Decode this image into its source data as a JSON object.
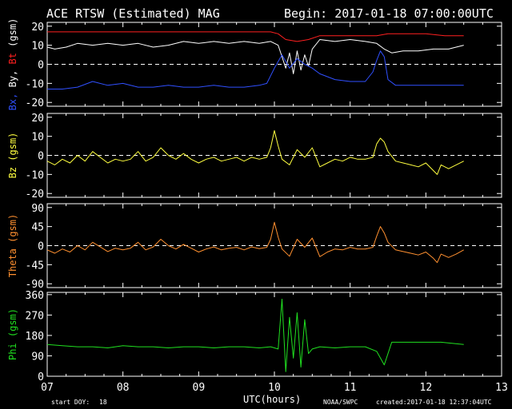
{
  "header": {
    "title": "ACE RTSW (Estimated) MAG",
    "begin": "Begin: 2017-01-18 07:00:00UTC"
  },
  "footer": {
    "start_doy_label": "start DOY:",
    "start_doy": "18",
    "xlabel": "UTC(hours)",
    "source": "NOAA/SWPC",
    "created": "created:2017-01-18 12:37:04UTC"
  },
  "colors": {
    "bt": "#ff2020",
    "by": "#ffffff",
    "bx": "#3050ff",
    "bz": "#ffff40",
    "theta": "#ff9030",
    "phi": "#20e020"
  },
  "chart_data": [
    {
      "type": "line",
      "ylabel_parts": [
        {
          "text": "Bx,",
          "color": "#3050ff"
        },
        {
          "text": " By,",
          "color": "#ffffff"
        },
        {
          "text": " Bt",
          "color": "#ff2020"
        },
        {
          "text": " (gsm)",
          "color": "#ffffff"
        }
      ],
      "ylim": [
        -22,
        22
      ],
      "yticks": [
        20,
        10,
        0,
        -10,
        -20
      ],
      "xlim": [
        7,
        13
      ],
      "zero_line": true,
      "series": [
        {
          "name": "Bt",
          "color": "#ff2020",
          "x": [
            7.0,
            7.25,
            7.5,
            7.75,
            8.0,
            8.25,
            8.5,
            8.75,
            9.0,
            9.25,
            9.5,
            9.75,
            9.95,
            10.05,
            10.15,
            10.3,
            10.45,
            10.6,
            10.8,
            11.0,
            11.2,
            11.35,
            11.5,
            11.75,
            12.0,
            12.25,
            12.5
          ],
          "y": [
            17,
            17,
            17,
            17,
            17,
            17,
            17,
            17,
            17,
            17,
            17,
            17,
            17,
            16,
            13,
            12,
            13,
            15,
            15,
            15,
            15,
            15,
            16,
            16,
            16,
            15,
            15
          ]
        },
        {
          "name": "By",
          "color": "#ffffff",
          "x": [
            7.0,
            7.1,
            7.25,
            7.4,
            7.6,
            7.8,
            8.0,
            8.2,
            8.4,
            8.6,
            8.8,
            9.0,
            9.2,
            9.4,
            9.6,
            9.8,
            9.95,
            10.05,
            10.1,
            10.15,
            10.2,
            10.25,
            10.3,
            10.35,
            10.4,
            10.45,
            10.5,
            10.6,
            10.8,
            11.0,
            11.2,
            11.35,
            11.45,
            11.55,
            11.7,
            11.9,
            12.1,
            12.3,
            12.5
          ],
          "y": [
            9,
            8,
            9,
            11,
            10,
            11,
            10,
            11,
            9,
            10,
            12,
            11,
            12,
            11,
            12,
            11,
            12,
            10,
            4,
            -2,
            6,
            -5,
            7,
            -3,
            5,
            -1,
            8,
            13,
            12,
            13,
            12,
            11,
            8,
            6,
            7,
            7,
            8,
            8,
            10
          ]
        },
        {
          "name": "Bx",
          "color": "#3050ff",
          "x": [
            7.0,
            7.2,
            7.4,
            7.6,
            7.8,
            8.0,
            8.2,
            8.4,
            8.6,
            8.8,
            9.0,
            9.2,
            9.4,
            9.6,
            9.8,
            9.9,
            9.95,
            10.0,
            10.1,
            10.2,
            10.3,
            10.4,
            10.5,
            10.6,
            10.8,
            11.0,
            11.2,
            11.3,
            11.35,
            11.4,
            11.45,
            11.5,
            11.6,
            11.8,
            12.0,
            12.2,
            12.5
          ],
          "y": [
            -13,
            -13,
            -12,
            -9,
            -11,
            -10,
            -12,
            -12,
            -11,
            -12,
            -12,
            -11,
            -12,
            -12,
            -11,
            -10,
            -6,
            -2,
            5,
            -2,
            3,
            0,
            -2,
            -5,
            -8,
            -9,
            -9,
            -4,
            2,
            7,
            4,
            -8,
            -11,
            -11,
            -11,
            -11,
            -11
          ]
        }
      ]
    },
    {
      "type": "line",
      "ylabel_parts": [
        {
          "text": "Bz  (gsm)",
          "color": "#ffff40"
        }
      ],
      "ylim": [
        -22,
        22
      ],
      "yticks": [
        20,
        10,
        0,
        -10,
        -20
      ],
      "xlim": [
        7,
        13
      ],
      "zero_line": true,
      "series": [
        {
          "name": "Bz",
          "color": "#ffff40",
          "x": [
            7.0,
            7.1,
            7.2,
            7.3,
            7.4,
            7.5,
            7.6,
            7.7,
            7.8,
            7.9,
            8.0,
            8.1,
            8.2,
            8.3,
            8.4,
            8.5,
            8.6,
            8.7,
            8.8,
            8.9,
            9.0,
            9.1,
            9.2,
            9.3,
            9.4,
            9.5,
            9.6,
            9.7,
            9.8,
            9.9,
            9.95,
            10.0,
            10.05,
            10.1,
            10.2,
            10.3,
            10.4,
            10.5,
            10.6,
            10.7,
            10.8,
            10.9,
            11.0,
            11.1,
            11.2,
            11.3,
            11.35,
            11.4,
            11.45,
            11.5,
            11.6,
            11.7,
            11.8,
            11.9,
            12.0,
            12.1,
            12.15,
            12.2,
            12.3,
            12.4,
            12.5
          ],
          "y": [
            -3,
            -5,
            -2,
            -4,
            0,
            -3,
            2,
            -1,
            -4,
            -2,
            -3,
            -2,
            2,
            -3,
            -1,
            4,
            0,
            -2,
            1,
            -2,
            -4,
            -2,
            -1,
            -3,
            -2,
            -1,
            -3,
            -1,
            -2,
            -1,
            4,
            13,
            5,
            -2,
            -5,
            3,
            -1,
            4,
            -6,
            -4,
            -2,
            -3,
            -1,
            -2,
            -2,
            -1,
            6,
            9,
            7,
            2,
            -3,
            -4,
            -5,
            -6,
            -4,
            -8,
            -10,
            -5,
            -7,
            -5,
            -3
          ]
        }
      ]
    },
    {
      "type": "line",
      "ylabel_parts": [
        {
          "text": "Theta (gsm)",
          "color": "#ff9030"
        }
      ],
      "ylim": [
        -99,
        99
      ],
      "yticks": [
        90,
        45,
        0,
        -45,
        -90
      ],
      "xlim": [
        7,
        13
      ],
      "zero_line": true,
      "series": [
        {
          "name": "Theta",
          "color": "#ff9030",
          "x": [
            7.0,
            7.1,
            7.2,
            7.3,
            7.4,
            7.5,
            7.6,
            7.7,
            7.8,
            7.9,
            8.0,
            8.1,
            8.2,
            8.3,
            8.4,
            8.5,
            8.6,
            8.7,
            8.8,
            8.9,
            9.0,
            9.1,
            9.2,
            9.3,
            9.4,
            9.5,
            9.6,
            9.7,
            9.8,
            9.9,
            9.95,
            10.0,
            10.05,
            10.1,
            10.2,
            10.3,
            10.4,
            10.5,
            10.6,
            10.7,
            10.8,
            10.9,
            11.0,
            11.1,
            11.2,
            11.3,
            11.35,
            11.4,
            11.45,
            11.5,
            11.6,
            11.7,
            11.8,
            11.9,
            12.0,
            12.1,
            12.15,
            12.2,
            12.3,
            12.4,
            12.5
          ],
          "y": [
            -10,
            -18,
            -8,
            -15,
            0,
            -10,
            8,
            -3,
            -14,
            -6,
            -10,
            -6,
            8,
            -10,
            -3,
            15,
            0,
            -8,
            3,
            -6,
            -15,
            -8,
            -3,
            -10,
            -6,
            -4,
            -10,
            -3,
            -7,
            -4,
            15,
            55,
            20,
            -8,
            -25,
            15,
            -4,
            18,
            -26,
            -15,
            -8,
            -10,
            -4,
            -8,
            -8,
            -4,
            22,
            45,
            30,
            8,
            -10,
            -14,
            -18,
            -22,
            -15,
            -30,
            -40,
            -20,
            -28,
            -20,
            -10
          ]
        }
      ]
    },
    {
      "type": "line",
      "ylabel_parts": [
        {
          "text": "Phi  (gsm)",
          "color": "#20e020"
        }
      ],
      "ylim": [
        0,
        370
      ],
      "yticks": [
        360,
        270,
        180,
        90,
        0
      ],
      "xlim": [
        7,
        13
      ],
      "xticks": [
        "07",
        "08",
        "09",
        "10",
        "11",
        "12",
        "13"
      ],
      "zero_line": false,
      "series": [
        {
          "name": "Phi",
          "color": "#20e020",
          "x": [
            7.0,
            7.2,
            7.4,
            7.6,
            7.8,
            8.0,
            8.2,
            8.4,
            8.6,
            8.8,
            9.0,
            9.2,
            9.4,
            9.6,
            9.8,
            9.95,
            10.05,
            10.1,
            10.15,
            10.2,
            10.25,
            10.3,
            10.35,
            10.4,
            10.45,
            10.5,
            10.6,
            10.8,
            11.0,
            11.2,
            11.35,
            11.45,
            11.55,
            11.8,
            12.0,
            12.2,
            12.5
          ],
          "y": [
            140,
            135,
            130,
            130,
            125,
            135,
            130,
            130,
            125,
            130,
            130,
            125,
            130,
            130,
            125,
            130,
            120,
            340,
            20,
            260,
            80,
            280,
            40,
            250,
            100,
            120,
            130,
            125,
            130,
            130,
            110,
            50,
            150,
            150,
            150,
            150,
            140
          ]
        }
      ]
    }
  ]
}
